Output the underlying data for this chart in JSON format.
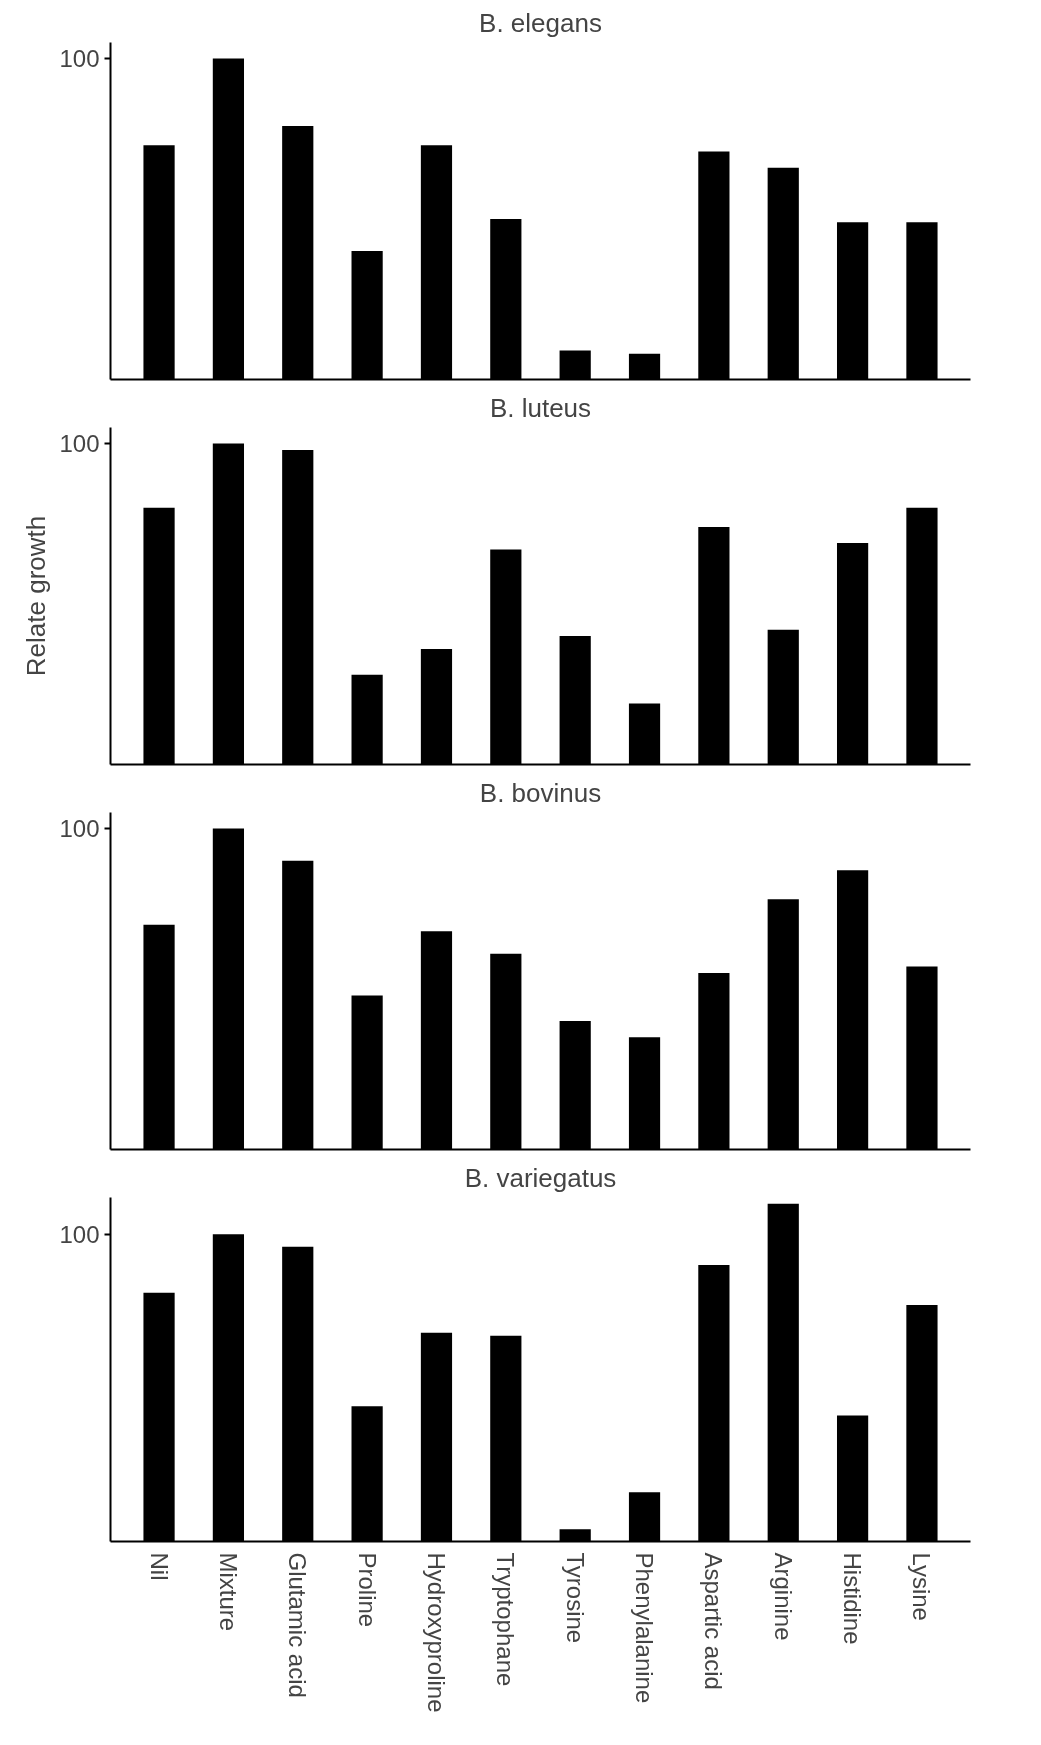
{
  "chart_data": [
    {
      "type": "bar",
      "title": "B. elegans",
      "categories": [
        null,
        null,
        null,
        null,
        null,
        null,
        null,
        null,
        null,
        null,
        null,
        null
      ],
      "values": [
        73,
        100,
        79,
        40,
        73,
        50,
        9,
        8,
        71,
        66,
        49,
        49
      ],
      "color": "#000000",
      "ylim": [
        0,
        105
      ],
      "yticks": [
        100
      ],
      "grid": false,
      "tick_labels": "y"
    },
    {
      "type": "bar",
      "title": "B. luteus",
      "ylabel": "Relate growth",
      "categories": [
        null,
        null,
        null,
        null,
        null,
        null,
        null,
        null,
        null,
        null,
        null,
        null
      ],
      "values": [
        80,
        100,
        98,
        28,
        36,
        67,
        40,
        19,
        74,
        42,
        69,
        80
      ],
      "color": "#000000",
      "ylim": [
        0,
        105
      ],
      "yticks": [
        100
      ],
      "grid": false,
      "tick_labels": "y"
    },
    {
      "type": "bar",
      "title": "B. bovinus",
      "categories": [
        null,
        null,
        null,
        null,
        null,
        null,
        null,
        null,
        null,
        null,
        null,
        null
      ],
      "values": [
        70,
        100,
        90,
        48,
        68,
        61,
        40,
        35,
        55,
        78,
        87,
        57
      ],
      "color": "#000000",
      "ylim": [
        0,
        105
      ],
      "yticks": [
        100
      ],
      "grid": false,
      "tick_labels": "y"
    },
    {
      "type": "bar",
      "title": "B. variegatus",
      "categories": [
        "Nil",
        "Mixture",
        "Glutamic acid",
        "Proline",
        "Hydroxyproline",
        "Tryptophane",
        "Tyrosine",
        "Phenylalanine",
        "Aspartic acid",
        "Arginine",
        "Histidine",
        "Lysine"
      ],
      "values": [
        81,
        100,
        96,
        44,
        68,
        67,
        4,
        16,
        90,
        110,
        41,
        77
      ],
      "color": "#000000",
      "ylim": [
        0,
        112
      ],
      "yticks": [
        100
      ],
      "grid": false
    }
  ]
}
